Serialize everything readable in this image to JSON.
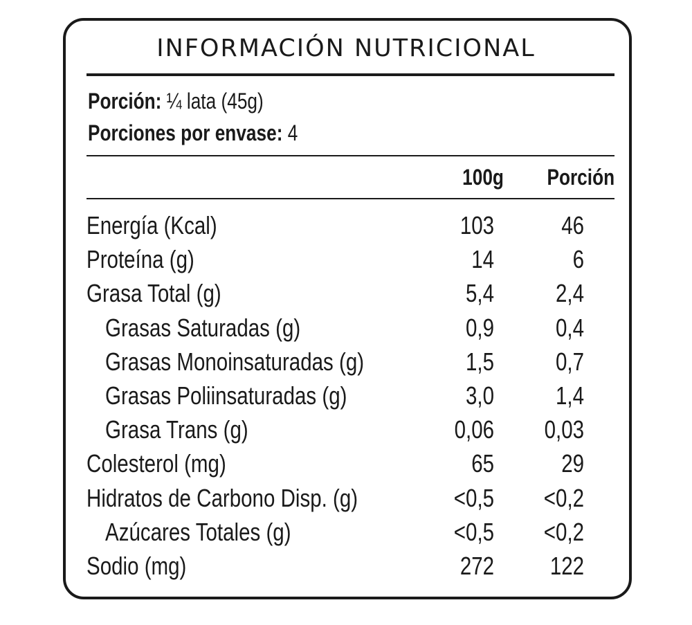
{
  "label": {
    "title": "INFORMACIÓN NUTRICIONAL",
    "serving_size": {
      "label": "Porción:",
      "value": "¼ lata (45g)"
    },
    "servings_per_container": {
      "label": "Porciones por envase:",
      "value": "4"
    },
    "columns": {
      "per_100g": "100g",
      "per_serving": "Porción"
    },
    "rows": [
      {
        "name": "Energía (Kcal)",
        "per_100g": "103",
        "per_serving": "46",
        "indent": false
      },
      {
        "name": "Proteína (g)",
        "per_100g": "14",
        "per_serving": "6",
        "indent": false
      },
      {
        "name": "Grasa Total (g)",
        "per_100g": "5,4",
        "per_serving": "2,4",
        "indent": false
      },
      {
        "name": "Grasas Saturadas (g)",
        "per_100g": "0,9",
        "per_serving": "0,4",
        "indent": true
      },
      {
        "name": "Grasas Monoinsaturadas (g)",
        "per_100g": "1,5",
        "per_serving": "0,7",
        "indent": true
      },
      {
        "name": "Grasas Poliinsaturadas (g)",
        "per_100g": "3,0",
        "per_serving": "1,4",
        "indent": true
      },
      {
        "name": "Grasa Trans (g)",
        "per_100g": "0,06",
        "per_serving": "0,03",
        "indent": true
      },
      {
        "name": "Colesterol (mg)",
        "per_100g": "65",
        "per_serving": "29",
        "indent": false
      },
      {
        "name": "Hidratos de Carbono Disp. (g)",
        "per_100g": "<0,5",
        "per_serving": "<0,2",
        "indent": false
      },
      {
        "name": "Azúcares Totales (g)",
        "per_100g": "<0,5",
        "per_serving": "<0,2",
        "indent": true
      },
      {
        "name": "Sodio (mg)",
        "per_100g": "272",
        "per_serving": "122",
        "indent": false
      }
    ]
  }
}
